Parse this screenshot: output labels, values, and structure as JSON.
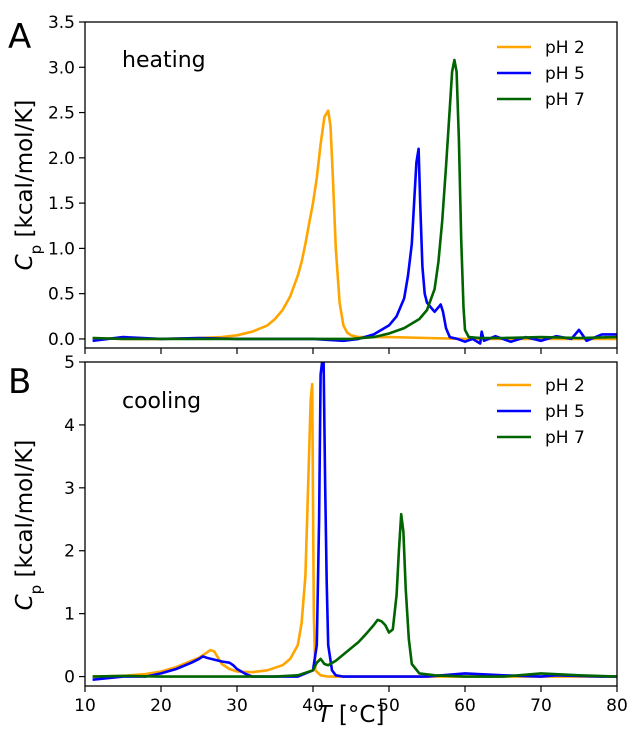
{
  "chart_data": [
    {
      "type": "line",
      "panel_label": "A",
      "condition_label": "heating",
      "ylabel": "C_p [kcal/mol/K]",
      "ylabel_main": "C",
      "ylabel_sub": "p",
      "ylabel_rest": " [kcal/mol/K]",
      "ylim": [
        -0.1,
        3.5
      ],
      "yticks": [
        "0.0",
        "0.5",
        "1.0",
        "1.5",
        "2.0",
        "2.5",
        "3.0",
        "3.5"
      ],
      "ytick_values": [
        0,
        0.5,
        1.0,
        1.5,
        2.0,
        2.5,
        3.0,
        3.5
      ],
      "xlim": [
        10,
        80
      ],
      "legend_position": "top-right",
      "series": [
        {
          "name": "pH 2",
          "color": "#FFA500",
          "x": [
            11,
            15,
            20,
            25,
            28,
            30,
            32,
            34,
            35,
            36,
            37,
            38,
            38.5,
            39,
            39.5,
            40,
            40.5,
            41,
            41.5,
            42,
            42.3,
            42.6,
            43,
            43.5,
            44,
            44.5,
            45,
            46,
            48,
            50,
            55,
            60,
            65,
            70,
            75,
            80
          ],
          "y": [
            0.01,
            0.0,
            0.0,
            0.01,
            0.02,
            0.04,
            0.08,
            0.15,
            0.22,
            0.32,
            0.47,
            0.7,
            0.85,
            1.05,
            1.28,
            1.5,
            1.78,
            2.15,
            2.45,
            2.52,
            2.35,
            1.8,
            1.0,
            0.4,
            0.15,
            0.07,
            0.04,
            0.02,
            0.02,
            0.02,
            0.01,
            0.0,
            0.0,
            0.0,
            0.0,
            0.0
          ]
        },
        {
          "name": "pH 5",
          "color": "#0000FF",
          "x": [
            11,
            15,
            20,
            25,
            30,
            35,
            40,
            44,
            46,
            48,
            50,
            51,
            52,
            52.5,
            53,
            53.3,
            53.6,
            53.9,
            54.1,
            54.4,
            54.7,
            55,
            55.5,
            56,
            56.5,
            56.8,
            57.1,
            57.5,
            58,
            59,
            60,
            61,
            62,
            62.2,
            62.5,
            64,
            66,
            68,
            70,
            72,
            74,
            75,
            76,
            78,
            80
          ],
          "y": [
            -0.02,
            0.02,
            0.0,
            0.01,
            0.0,
            0.0,
            0.0,
            -0.02,
            0.0,
            0.05,
            0.15,
            0.25,
            0.45,
            0.7,
            1.05,
            1.5,
            1.95,
            2.1,
            1.5,
            0.8,
            0.5,
            0.4,
            0.35,
            0.3,
            0.35,
            0.38,
            0.3,
            0.12,
            0.02,
            0.0,
            -0.03,
            0.0,
            -0.05,
            0.08,
            -0.02,
            0.03,
            -0.03,
            0.02,
            -0.02,
            0.03,
            0.0,
            0.1,
            -0.02,
            0.05,
            0.05
          ]
        },
        {
          "name": "pH 7",
          "color": "#006400",
          "x": [
            11,
            15,
            20,
            25,
            30,
            35,
            40,
            45,
            48,
            50,
            52,
            54,
            55,
            56,
            56.5,
            57,
            57.5,
            58,
            58.3,
            58.6,
            58.9,
            59.2,
            59.5,
            59.8,
            60,
            60.5,
            62,
            65,
            70,
            75,
            80
          ],
          "y": [
            0.01,
            0.0,
            0.0,
            0.0,
            0.0,
            0.0,
            0.0,
            0.0,
            0.02,
            0.06,
            0.12,
            0.22,
            0.32,
            0.55,
            0.85,
            1.3,
            1.9,
            2.55,
            2.95,
            3.08,
            2.95,
            2.2,
            1.1,
            0.35,
            0.1,
            0.02,
            0.01,
            0.01,
            0.02,
            0.01,
            0.02
          ]
        }
      ]
    },
    {
      "type": "line",
      "panel_label": "B",
      "condition_label": "cooling",
      "ylabel": "C_p [kcal/mol/K]",
      "ylabel_main": "C",
      "ylabel_sub": "p",
      "ylabel_rest": " [kcal/mol/K]",
      "ylim": [
        -0.15,
        5
      ],
      "yticks": [
        "0",
        "1",
        "2",
        "3",
        "4",
        "5"
      ],
      "ytick_values": [
        0,
        1,
        2,
        3,
        4,
        5
      ],
      "xlim": [
        10,
        80
      ],
      "xticks": [
        "10",
        "20",
        "30",
        "40",
        "50",
        "60",
        "70",
        "80"
      ],
      "xtick_values": [
        10,
        20,
        30,
        40,
        50,
        60,
        70,
        80
      ],
      "xlabel": "T [°C]",
      "xlabel_main": "T",
      "xlabel_rest": " [°C]",
      "legend_position": "top-right",
      "series": [
        {
          "name": "pH 2",
          "color": "#FFA500",
          "x": [
            11,
            15,
            18,
            20,
            22,
            24,
            25,
            26,
            26.5,
            27,
            27.5,
            28,
            29,
            30,
            32,
            34,
            36,
            37,
            38,
            38.5,
            39,
            39.3,
            39.5,
            39.7,
            39.9,
            40.1,
            40.3,
            41,
            42,
            45,
            50,
            55,
            60,
            65,
            70,
            75,
            80
          ],
          "y": [
            0.0,
            0.01,
            0.04,
            0.08,
            0.15,
            0.25,
            0.3,
            0.38,
            0.42,
            0.4,
            0.3,
            0.2,
            0.12,
            0.08,
            0.07,
            0.1,
            0.18,
            0.28,
            0.5,
            0.85,
            1.6,
            2.8,
            3.6,
            4.4,
            4.65,
            1.0,
            0.1,
            0.02,
            0.0,
            0.0,
            0.0,
            0.0,
            0.0,
            0.0,
            0.0,
            0.0,
            0.0
          ]
        },
        {
          "name": "pH 5",
          "color": "#0000FF",
          "x": [
            11,
            15,
            18,
            20,
            22,
            24,
            25,
            25.5,
            26,
            27,
            28,
            29,
            29.5,
            30,
            31,
            32,
            35,
            38,
            40,
            40.5,
            40.8,
            41,
            41.2,
            41.4,
            41.6,
            41.8,
            42,
            42.5,
            43,
            44,
            46,
            48,
            50,
            55,
            58,
            60,
            65,
            70,
            72,
            75,
            78,
            80
          ],
          "y": [
            -0.05,
            0.0,
            0.0,
            0.05,
            0.12,
            0.22,
            0.28,
            0.32,
            0.3,
            0.27,
            0.24,
            0.22,
            0.18,
            0.12,
            0.05,
            0.0,
            0.0,
            0.0,
            0.1,
            0.5,
            2.5,
            4.8,
            5.0,
            5.0,
            3.0,
            1.5,
            0.5,
            0.1,
            0.02,
            0.0,
            0.0,
            0.0,
            0.0,
            0.0,
            0.03,
            0.05,
            0.02,
            0.0,
            0.02,
            0.01,
            0.0,
            0.0
          ]
        },
        {
          "name": "pH 7",
          "color": "#006400",
          "x": [
            11,
            15,
            20,
            25,
            30,
            35,
            38,
            40,
            40.5,
            41,
            41.5,
            42,
            43,
            44,
            45,
            46,
            47,
            48,
            48.5,
            49,
            49.5,
            50,
            50.5,
            51,
            51.3,
            51.6,
            51.9,
            52.2,
            52.6,
            53,
            54,
            56,
            60,
            65,
            70,
            75,
            80
          ],
          "y": [
            0.0,
            0.01,
            0.0,
            0.0,
            0.0,
            0.0,
            0.02,
            0.1,
            0.22,
            0.28,
            0.2,
            0.18,
            0.25,
            0.35,
            0.45,
            0.55,
            0.68,
            0.82,
            0.9,
            0.88,
            0.82,
            0.7,
            0.75,
            1.3,
            2.0,
            2.58,
            2.3,
            1.4,
            0.6,
            0.2,
            0.05,
            0.02,
            0.0,
            0.0,
            0.05,
            0.02,
            0.0
          ]
        }
      ]
    }
  ]
}
